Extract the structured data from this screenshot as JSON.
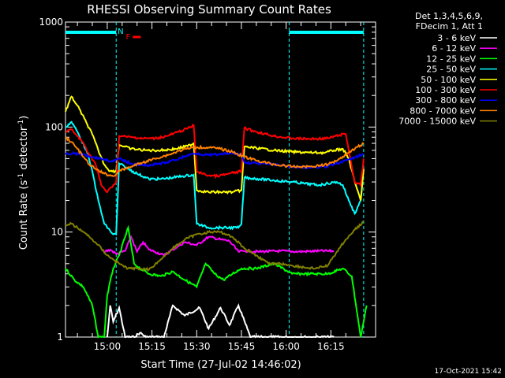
{
  "chart_data": {
    "type": "line",
    "title": "RHESSI Observing Summary Count Rates",
    "xlabel": "Start Time (27-Jul-02 14:46:02)",
    "ylabel_main": "Count Rate (s",
    "ylabel_sup1": "-1",
    "ylabel_mid": " detector",
    "ylabel_sup2": "-1",
    "ylabel_end": ")",
    "yscale": "log",
    "ylim": [
      1,
      1000
    ],
    "xlim_minutes": [
      0,
      104
    ],
    "x_ticks": [
      {
        "label": "15:00",
        "minute": 14
      },
      {
        "label": "15:15",
        "minute": 29
      },
      {
        "label": "15:30",
        "minute": 44
      },
      {
        "label": "15:45",
        "minute": 59
      },
      {
        "label": "16:00",
        "minute": 74
      },
      {
        "label": "16:15",
        "minute": 89
      }
    ],
    "y_ticks": [
      {
        "label": "1",
        "value": 1
      },
      {
        "label": "10",
        "value": 10
      },
      {
        "label": "100",
        "value": 100
      },
      {
        "label": "1000",
        "value": 1000
      }
    ],
    "legend_header": [
      "Det 1,3,4,5,6,9,",
      "FDecim 1, Att 1"
    ],
    "markers": [
      {
        "label": "N",
        "color": "#00ffff",
        "minute": 18.5
      },
      {
        "label": "F",
        "color": "#ff0000",
        "minute": 21
      }
    ],
    "night_intervals": [
      [
        0,
        17
      ],
      [
        75,
        100
      ]
    ],
    "series": [
      {
        "name": "3 - 6 keV",
        "color": "#ffffff",
        "points": [
          [
            14,
            1.0
          ],
          [
            15,
            2.0
          ],
          [
            16,
            1.4
          ],
          [
            18,
            1.9
          ],
          [
            20,
            1.0
          ],
          [
            23,
            1.0
          ],
          [
            25,
            1.1
          ],
          [
            27,
            1.0
          ],
          [
            33,
            1.0
          ],
          [
            36,
            2.0
          ],
          [
            40,
            1.6
          ],
          [
            45,
            1.9
          ],
          [
            48,
            1.2
          ],
          [
            52,
            1.9
          ],
          [
            55,
            1.3
          ],
          [
            58,
            2.0
          ],
          [
            62,
            1.0
          ],
          [
            70,
            1.0
          ],
          [
            82,
            1.0
          ],
          [
            90,
            1.0
          ]
        ]
      },
      {
        "name": "6 - 12 keV",
        "color": "#ff00ff",
        "points": [
          [
            13,
            6.5
          ],
          [
            15,
            6.8
          ],
          [
            17,
            6.2
          ],
          [
            20,
            6.6
          ],
          [
            22,
            9.0
          ],
          [
            24,
            6.5
          ],
          [
            26,
            8.0
          ],
          [
            28,
            6.8
          ],
          [
            30,
            6.5
          ],
          [
            33,
            6.0
          ],
          [
            36,
            6.8
          ],
          [
            40,
            8.0
          ],
          [
            44,
            7.5
          ],
          [
            48,
            9.0
          ],
          [
            52,
            8.5
          ],
          [
            55,
            8.2
          ],
          [
            58,
            6.5
          ],
          [
            60,
            6.6
          ],
          [
            65,
            6.5
          ],
          [
            72,
            6.6
          ],
          [
            78,
            6.5
          ],
          [
            85,
            6.6
          ],
          [
            90,
            6.6
          ]
        ]
      },
      {
        "name": "12 - 25 keV",
        "color": "#00ff00",
        "points": [
          [
            0,
            4.5
          ],
          [
            3,
            3.5
          ],
          [
            6,
            3.0
          ],
          [
            9,
            2.0
          ],
          [
            11,
            1.0
          ],
          [
            13,
            1.0
          ],
          [
            14,
            2.5
          ],
          [
            16,
            4.5
          ],
          [
            18,
            6.0
          ],
          [
            21,
            11.0
          ],
          [
            23,
            5.0
          ],
          [
            25,
            4.5
          ],
          [
            28,
            4.0
          ],
          [
            32,
            3.8
          ],
          [
            36,
            4.2
          ],
          [
            40,
            3.5
          ],
          [
            44,
            3.0
          ],
          [
            47,
            5.0
          ],
          [
            50,
            4.0
          ],
          [
            53,
            3.5
          ],
          [
            56,
            4.0
          ],
          [
            59,
            4.5
          ],
          [
            64,
            4.5
          ],
          [
            70,
            5.0
          ],
          [
            76,
            4.0
          ],
          [
            82,
            4.0
          ],
          [
            88,
            4.0
          ],
          [
            93,
            4.5
          ],
          [
            96,
            3.8
          ],
          [
            99,
            1.0
          ],
          [
            101,
            2.0
          ]
        ]
      },
      {
        "name": "25 - 50 keV",
        "color": "#00ffff",
        "points": [
          [
            0,
            100
          ],
          [
            2,
            112
          ],
          [
            4,
            90
          ],
          [
            7,
            60
          ],
          [
            9,
            38
          ],
          [
            11,
            20
          ],
          [
            13,
            12
          ],
          [
            16,
            9.5
          ],
          [
            17,
            9.5
          ],
          [
            18,
            45
          ],
          [
            21,
            40
          ],
          [
            24,
            36
          ],
          [
            28,
            32
          ],
          [
            32,
            32
          ],
          [
            36,
            33
          ],
          [
            39,
            34
          ],
          [
            43,
            35
          ],
          [
            44,
            12
          ],
          [
            48,
            11
          ],
          [
            52,
            11
          ],
          [
            58,
            11
          ],
          [
            59,
            12
          ],
          [
            60,
            33
          ],
          [
            65,
            32
          ],
          [
            70,
            31
          ],
          [
            76,
            30
          ],
          [
            80,
            29
          ],
          [
            85,
            28
          ],
          [
            88,
            29
          ],
          [
            91,
            30
          ],
          [
            93,
            28
          ],
          [
            95,
            20
          ],
          [
            97,
            15
          ],
          [
            99,
            20
          ],
          [
            100,
            40
          ]
        ]
      },
      {
        "name": "50 - 100 keV",
        "color": "#ffff00",
        "points": [
          [
            0,
            140
          ],
          [
            2,
            195
          ],
          [
            4,
            160
          ],
          [
            7,
            110
          ],
          [
            9,
            85
          ],
          [
            11,
            60
          ],
          [
            13,
            44
          ],
          [
            15,
            38
          ],
          [
            17,
            38
          ],
          [
            18,
            68
          ],
          [
            22,
            62
          ],
          [
            27,
            60
          ],
          [
            32,
            60
          ],
          [
            37,
            62
          ],
          [
            41,
            66
          ],
          [
            43,
            70
          ],
          [
            44,
            25
          ],
          [
            48,
            24
          ],
          [
            52,
            24
          ],
          [
            56,
            24
          ],
          [
            59,
            25
          ],
          [
            60,
            65
          ],
          [
            64,
            63
          ],
          [
            70,
            60
          ],
          [
            76,
            58
          ],
          [
            82,
            57
          ],
          [
            87,
            57
          ],
          [
            90,
            60
          ],
          [
            93,
            62
          ],
          [
            95,
            50
          ],
          [
            97,
            30
          ],
          [
            99,
            20
          ],
          [
            100,
            40
          ]
        ]
      },
      {
        "name": "100 - 300 keV",
        "color": "#ff0000",
        "points": [
          [
            0,
            90
          ],
          [
            2,
            95
          ],
          [
            4,
            82
          ],
          [
            6,
            70
          ],
          [
            8,
            55
          ],
          [
            10,
            45
          ],
          [
            12,
            28
          ],
          [
            14,
            24
          ],
          [
            16,
            28
          ],
          [
            17,
            30
          ],
          [
            18,
            82
          ],
          [
            22,
            80
          ],
          [
            26,
            78
          ],
          [
            30,
            78
          ],
          [
            34,
            82
          ],
          [
            38,
            90
          ],
          [
            42,
            100
          ],
          [
            43,
            104
          ],
          [
            44,
            38
          ],
          [
            47,
            35
          ],
          [
            51,
            34
          ],
          [
            55,
            36
          ],
          [
            59,
            38
          ],
          [
            60,
            98
          ],
          [
            64,
            90
          ],
          [
            70,
            82
          ],
          [
            76,
            78
          ],
          [
            82,
            77
          ],
          [
            88,
            78
          ],
          [
            92,
            84
          ],
          [
            94,
            86
          ],
          [
            95,
            60
          ],
          [
            97,
            30
          ],
          [
            99,
            28
          ],
          [
            100,
            50
          ]
        ]
      },
      {
        "name": "300 - 800 keV",
        "color": "#0000ff",
        "points": [
          [
            0,
            55
          ],
          [
            3,
            56
          ],
          [
            6,
            55
          ],
          [
            9,
            52
          ],
          [
            12,
            50
          ],
          [
            16,
            47
          ],
          [
            18,
            50
          ],
          [
            22,
            45
          ],
          [
            26,
            43
          ],
          [
            30,
            44
          ],
          [
            34,
            46
          ],
          [
            38,
            50
          ],
          [
            42,
            55
          ],
          [
            44,
            56
          ],
          [
            48,
            54
          ],
          [
            52,
            55
          ],
          [
            56,
            56
          ],
          [
            59,
            55
          ],
          [
            60,
            46
          ],
          [
            64,
            45
          ],
          [
            70,
            44
          ],
          [
            76,
            42
          ],
          [
            82,
            41
          ],
          [
            88,
            42
          ],
          [
            92,
            46
          ],
          [
            96,
            50
          ],
          [
            100,
            55
          ]
        ]
      },
      {
        "name": "800 - 7000 keV",
        "color": "#ff8000",
        "points": [
          [
            0,
            80
          ],
          [
            2,
            72
          ],
          [
            4,
            62
          ],
          [
            6,
            52
          ],
          [
            8,
            44
          ],
          [
            10,
            40
          ],
          [
            13,
            36
          ],
          [
            16,
            34
          ],
          [
            18,
            38
          ],
          [
            22,
            42
          ],
          [
            26,
            46
          ],
          [
            30,
            50
          ],
          [
            35,
            55
          ],
          [
            40,
            62
          ],
          [
            44,
            64
          ],
          [
            48,
            64
          ],
          [
            52,
            62
          ],
          [
            56,
            58
          ],
          [
            60,
            52
          ],
          [
            64,
            48
          ],
          [
            70,
            44
          ],
          [
            76,
            42
          ],
          [
            82,
            42
          ],
          [
            88,
            44
          ],
          [
            92,
            50
          ],
          [
            96,
            60
          ],
          [
            100,
            70
          ]
        ]
      },
      {
        "name": "7000 - 15000 keV",
        "color": "#808000",
        "points": [
          [
            0,
            11.5
          ],
          [
            2,
            12.0
          ],
          [
            4,
            11.0
          ],
          [
            6,
            10.0
          ],
          [
            8,
            9.0
          ],
          [
            10,
            8.0
          ],
          [
            12,
            7.0
          ],
          [
            14,
            6.0
          ],
          [
            16,
            5.5
          ],
          [
            18,
            5.0
          ],
          [
            21,
            4.5
          ],
          [
            24,
            4.5
          ],
          [
            28,
            4.4
          ],
          [
            32,
            5.5
          ],
          [
            36,
            7.0
          ],
          [
            40,
            8.5
          ],
          [
            44,
            9.5
          ],
          [
            48,
            10.0
          ],
          [
            52,
            10.0
          ],
          [
            56,
            9.0
          ],
          [
            60,
            7.0
          ],
          [
            64,
            6.0
          ],
          [
            68,
            5.0
          ],
          [
            72,
            5.0
          ],
          [
            76,
            4.8
          ],
          [
            80,
            4.6
          ],
          [
            84,
            4.5
          ],
          [
            88,
            4.8
          ],
          [
            91,
            6.5
          ],
          [
            94,
            8.5
          ],
          [
            97,
            10.5
          ],
          [
            100,
            12.5
          ]
        ]
      }
    ]
  },
  "footer": {
    "timestamp": "17-Oct-2021 15:42"
  }
}
